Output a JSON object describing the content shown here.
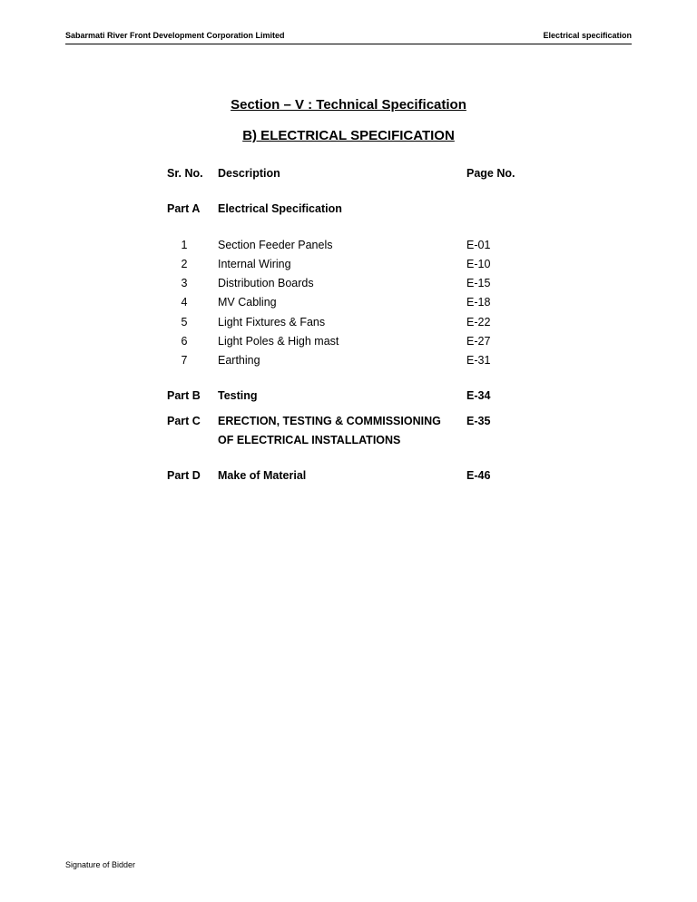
{
  "header": {
    "left": "Sabarmati River Front Development Corporation Limited",
    "right": "Electrical specification"
  },
  "titles": {
    "section": "Section – V : Technical Specification",
    "sub": "B) ELECTRICAL SPECIFICATION"
  },
  "columns": {
    "sr": "Sr. No.",
    "desc": "Description",
    "page": "Page No."
  },
  "partA": {
    "label": "Part A",
    "title": "Electrical Specification",
    "items": [
      {
        "n": "1",
        "d": "Section Feeder Panels",
        "p": "E-01"
      },
      {
        "n": "2",
        "d": "Internal Wiring",
        "p": "E-10"
      },
      {
        "n": "3",
        "d": "Distribution Boards",
        "p": "E-15"
      },
      {
        "n": "4",
        "d": "MV Cabling",
        "p": "E-18"
      },
      {
        "n": "5",
        "d": "Light Fixtures & Fans",
        "p": "E-22"
      },
      {
        "n": "6",
        "d": "Light Poles & High mast",
        "p": "E-27"
      },
      {
        "n": "7",
        "d": "Earthing",
        "p": "E-31"
      }
    ]
  },
  "partB": {
    "label": "Part B",
    "title": "Testing",
    "page": "E-34"
  },
  "partC": {
    "label": "Part C",
    "title": "ERECTION, TESTING & COMMISSIONING OF ELECTRICAL INSTALLATIONS",
    "page": "E-35"
  },
  "partD": {
    "label": "Part D",
    "title": "Make of Material",
    "page": "E-46"
  },
  "footer": "Signature of Bidder"
}
